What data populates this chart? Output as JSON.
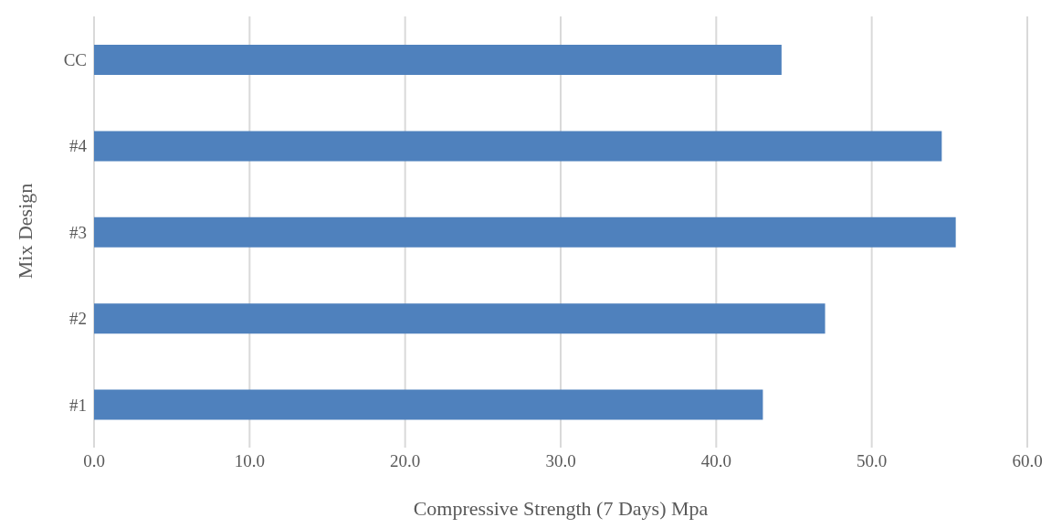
{
  "chart_data": {
    "type": "bar",
    "orientation": "horizontal",
    "xlabel": "Compressive Strength (7 Days) Mpa",
    "ylabel": "Mix Design",
    "categories": [
      "CC",
      "#4",
      "#3",
      "#2",
      "#1"
    ],
    "values": [
      44.2,
      54.5,
      55.4,
      47.0,
      43.0
    ],
    "color": "#4f81bd",
    "xlim": [
      0,
      60
    ],
    "xticks": [
      {
        "value": 0,
        "label": "0.0"
      },
      {
        "value": 10,
        "label": "10.0"
      },
      {
        "value": 20,
        "label": "20.0"
      },
      {
        "value": 30,
        "label": "30.0"
      },
      {
        "value": 40,
        "label": "40.0"
      },
      {
        "value": 50,
        "label": "50.0"
      },
      {
        "value": 60,
        "label": "60.0"
      }
    ],
    "grid": "x"
  }
}
